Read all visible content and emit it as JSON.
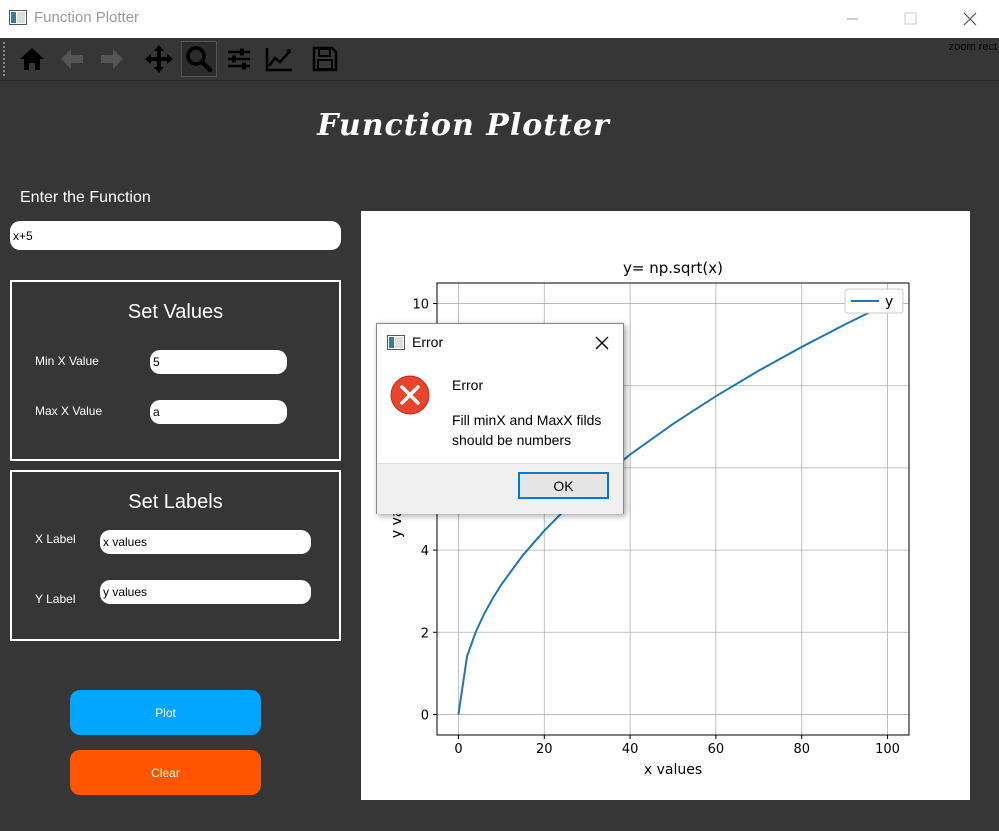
{
  "window": {
    "title": "Function Plotter"
  },
  "toolbar": {
    "status": "zoom rect",
    "tools": [
      "home-icon",
      "back-arrow-icon",
      "forward-arrow-icon",
      "pan-move-icon",
      "zoom-magnifier-icon",
      "subplots-config-icon",
      "edit-axes-icon",
      "save-floppy-icon"
    ]
  },
  "header": {
    "title": "Function Plotter"
  },
  "function": {
    "label": "Enter the Function",
    "value": "x+5"
  },
  "set_values": {
    "title": "Set Values",
    "min_label": "Min X Value",
    "min_value": "5",
    "max_label": "Max X Value",
    "max_value": "a"
  },
  "set_labels": {
    "title": "Set Labels",
    "x_label": "X Label",
    "x_value": "x values",
    "y_label": "Y Label",
    "y_value": "y values"
  },
  "buttons": {
    "plot": "Plot",
    "clear": "Clear"
  },
  "colors": {
    "plot_button": "#00a6ff",
    "clear_button": "#ff5500",
    "line": "#1f77b4",
    "background": "#363636"
  },
  "chart_data": {
    "type": "line",
    "title": "y= np.sqrt(x)",
    "xlabel": "x values",
    "ylabel": "y values",
    "xlim": [
      -5,
      105
    ],
    "ylim": [
      -0.5,
      10.5
    ],
    "xticks": [
      0,
      20,
      40,
      60,
      80,
      100
    ],
    "yticks": [
      0,
      2,
      4,
      6,
      8,
      10
    ],
    "grid": true,
    "legend_position": "top-right",
    "series": [
      {
        "name": "y",
        "x": [
          0,
          2,
          4,
          6,
          8,
          10,
          15,
          20,
          25,
          30,
          40,
          50,
          60,
          70,
          80,
          90,
          100
        ],
        "y": [
          0,
          1.414,
          2,
          2.449,
          2.828,
          3.162,
          3.873,
          4.472,
          5,
          5.477,
          6.325,
          7.071,
          7.746,
          8.367,
          8.944,
          9.487,
          10
        ]
      }
    ]
  },
  "dialog": {
    "title": "Error",
    "heading": "Error",
    "message": "Fill minX and MaxX filds should be numbers",
    "ok": "OK"
  }
}
